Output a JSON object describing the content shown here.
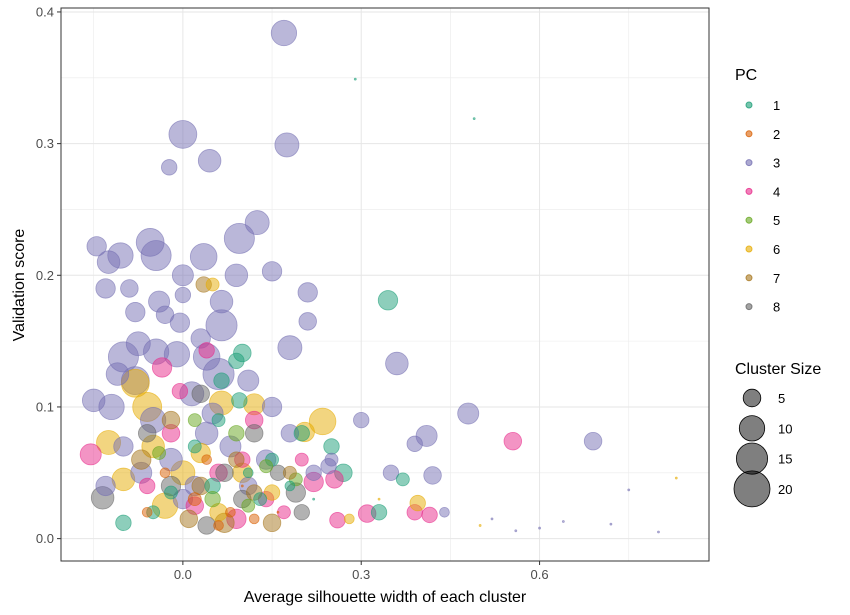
{
  "chart_data": {
    "type": "scatter",
    "xlabel": "Average silhouette width of each cluster",
    "ylabel": "Validation score",
    "xlim": [
      -0.205,
      0.885
    ],
    "ylim": [
      -0.017,
      0.403
    ],
    "x_ticks": [
      0.0,
      0.3,
      0.6
    ],
    "x_tick_labels": [
      "0.0",
      "0.3",
      "0.6"
    ],
    "y_ticks": [
      0.0,
      0.1,
      0.2,
      0.3,
      0.4
    ],
    "y_tick_labels": [
      "0.0",
      "0.1",
      "0.2",
      "0.3",
      "0.4"
    ],
    "grid": true,
    "legend_color": {
      "title": "PC",
      "entries": [
        {
          "label": "1",
          "color": "#1b9e77"
        },
        {
          "label": "2",
          "color": "#d95f02"
        },
        {
          "label": "3",
          "color": "#7570b3"
        },
        {
          "label": "4",
          "color": "#e7298a"
        },
        {
          "label": "5",
          "color": "#66a61e"
        },
        {
          "label": "6",
          "color": "#e6ab02"
        },
        {
          "label": "7",
          "color": "#a6761d"
        },
        {
          "label": "8",
          "color": "#666666"
        }
      ]
    },
    "legend_size": {
      "title": "Cluster Size",
      "entries": [
        {
          "label": "5",
          "value": 5
        },
        {
          "label": "10",
          "value": 10
        },
        {
          "label": "15",
          "value": 15
        },
        {
          "label": "20",
          "value": 20
        }
      ]
    },
    "series": [
      {
        "pc": "1",
        "points": [
          [
            0.29,
            0.349,
            1
          ],
          [
            0.49,
            0.319,
            1
          ],
          [
            0.345,
            0.181,
            6
          ],
          [
            0.1,
            0.141,
            5
          ],
          [
            0.09,
            0.135,
            4
          ],
          [
            0.065,
            0.12,
            4
          ],
          [
            0.095,
            0.105,
            4
          ],
          [
            0.2,
            0.08,
            4
          ],
          [
            0.25,
            0.07,
            4
          ],
          [
            0.27,
            0.05,
            5
          ],
          [
            0.33,
            0.02,
            4
          ],
          [
            0.37,
            0.045,
            3
          ],
          [
            -0.1,
            0.012,
            4
          ],
          [
            -0.05,
            0.02,
            3
          ],
          [
            0.05,
            0.04,
            4
          ],
          [
            0.13,
            0.03,
            3
          ],
          [
            0.15,
            0.06,
            3
          ],
          [
            0.11,
            0.05,
            2
          ],
          [
            -0.02,
            0.035,
            3
          ],
          [
            0.06,
            0.09,
            3
          ],
          [
            0.02,
            0.07,
            3
          ],
          [
            0.18,
            0.04,
            2
          ],
          [
            0.22,
            0.03,
            1
          ]
        ]
      },
      {
        "pc": "2",
        "points": [
          [
            0.02,
            0.03,
            3
          ],
          [
            0.08,
            0.02,
            2
          ],
          [
            0.12,
            0.015,
            2
          ],
          [
            -0.03,
            0.05,
            2
          ],
          [
            0.04,
            0.06,
            2
          ],
          [
            0.1,
            0.04,
            1
          ],
          [
            0.16,
            0.02,
            1
          ],
          [
            0.06,
            0.01,
            2
          ],
          [
            -0.06,
            0.02,
            2
          ]
        ]
      },
      {
        "pc": "3",
        "points": [
          [
            0.17,
            0.384,
            10
          ],
          [
            0.0,
            0.307,
            12
          ],
          [
            0.175,
            0.299,
            9
          ],
          [
            0.045,
            0.287,
            8
          ],
          [
            -0.023,
            0.282,
            4
          ],
          [
            0.125,
            0.24,
            9
          ],
          [
            0.095,
            0.228,
            14
          ],
          [
            -0.055,
            0.225,
            12
          ],
          [
            -0.045,
            0.215,
            14
          ],
          [
            0.035,
            0.214,
            11
          ],
          [
            0.0,
            0.2,
            7
          ],
          [
            0.09,
            0.2,
            8
          ],
          [
            0.15,
            0.203,
            6
          ],
          [
            -0.105,
            0.215,
            10
          ],
          [
            -0.145,
            0.222,
            6
          ],
          [
            -0.125,
            0.21,
            8
          ],
          [
            0.21,
            0.187,
            6
          ],
          [
            -0.09,
            0.19,
            5
          ],
          [
            -0.13,
            0.19,
            6
          ],
          [
            0.0,
            0.185,
            4
          ],
          [
            -0.04,
            0.18,
            7
          ],
          [
            0.065,
            0.18,
            8
          ],
          [
            0.18,
            0.145,
            9
          ],
          [
            -0.08,
            0.172,
            6
          ],
          [
            -0.005,
            0.164,
            6
          ],
          [
            -0.03,
            0.17,
            5
          ],
          [
            0.065,
            0.162,
            15
          ],
          [
            0.21,
            0.165,
            5
          ],
          [
            0.03,
            0.152,
            6
          ],
          [
            -0.075,
            0.148,
            9
          ],
          [
            -0.045,
            0.142,
            10
          ],
          [
            -0.01,
            0.14,
            10
          ],
          [
            0.04,
            0.138,
            11
          ],
          [
            0.06,
            0.125,
            15
          ],
          [
            -0.1,
            0.138,
            14
          ],
          [
            -0.08,
            0.12,
            12
          ],
          [
            0.11,
            0.12,
            7
          ],
          [
            0.36,
            0.133,
            8
          ],
          [
            0.015,
            0.11,
            9
          ],
          [
            -0.12,
            0.1,
            10
          ],
          [
            -0.15,
            0.105,
            8
          ],
          [
            0.48,
            0.095,
            7
          ],
          [
            0.69,
            0.074,
            5
          ],
          [
            0.39,
            0.072,
            4
          ],
          [
            0.41,
            0.078,
            7
          ],
          [
            0.35,
            0.05,
            4
          ],
          [
            0.42,
            0.048,
            5
          ],
          [
            0.3,
            0.09,
            4
          ],
          [
            0.245,
            0.055,
            4
          ],
          [
            0.14,
            0.06,
            6
          ],
          [
            0.08,
            0.07,
            7
          ],
          [
            0.04,
            0.08,
            8
          ],
          [
            -0.05,
            0.09,
            10
          ],
          [
            -0.02,
            0.06,
            8
          ],
          [
            0.02,
            0.04,
            6
          ],
          [
            0.18,
            0.08,
            5
          ],
          [
            0.22,
            0.05,
            4
          ],
          [
            -0.1,
            0.07,
            6
          ],
          [
            0.25,
            0.06,
            3
          ],
          [
            0.15,
            0.1,
            6
          ],
          [
            0.05,
            0.095,
            7
          ],
          [
            -0.07,
            0.05,
            7
          ],
          [
            0.11,
            0.04,
            5
          ],
          [
            0.6,
            0.008,
            1
          ],
          [
            0.75,
            0.037,
            1
          ],
          [
            0.8,
            0.005,
            1
          ],
          [
            0.52,
            0.015,
            1
          ],
          [
            0.64,
            0.013,
            1
          ],
          [
            0.72,
            0.011,
            1
          ],
          [
            0.56,
            0.006,
            1
          ],
          [
            0.44,
            0.02,
            2
          ],
          [
            -0.13,
            0.04,
            6
          ],
          [
            -0.11,
            0.125,
            8
          ],
          [
            0.0,
            0.03,
            6
          ]
        ]
      },
      {
        "pc": "4",
        "points": [
          [
            -0.155,
            0.064,
            7
          ],
          [
            0.555,
            0.074,
            5
          ],
          [
            0.04,
            0.143,
            4
          ],
          [
            -0.035,
            0.13,
            6
          ],
          [
            -0.005,
            0.112,
            4
          ],
          [
            0.22,
            0.043,
            6
          ],
          [
            0.255,
            0.045,
            5
          ],
          [
            0.31,
            0.019,
            5
          ],
          [
            0.39,
            0.02,
            4
          ],
          [
            0.415,
            0.018,
            4
          ],
          [
            0.14,
            0.03,
            4
          ],
          [
            0.09,
            0.015,
            6
          ],
          [
            0.06,
            0.05,
            5
          ],
          [
            -0.02,
            0.08,
            5
          ],
          [
            0.02,
            0.025,
            5
          ],
          [
            0.1,
            0.06,
            4
          ],
          [
            -0.06,
            0.04,
            4
          ],
          [
            0.17,
            0.02,
            3
          ],
          [
            0.2,
            0.06,
            3
          ],
          [
            0.12,
            0.09,
            5
          ],
          [
            0.26,
            0.014,
            4
          ]
        ]
      },
      {
        "pc": "5",
        "points": [
          [
            0.19,
            0.045,
            3
          ],
          [
            0.09,
            0.08,
            4
          ],
          [
            0.05,
            0.03,
            4
          ],
          [
            0.14,
            0.055,
            3
          ],
          [
            -0.04,
            0.065,
            3
          ],
          [
            0.02,
            0.09,
            3
          ],
          [
            0.11,
            0.025,
            3
          ]
        ]
      },
      {
        "pc": "6",
        "points": [
          [
            0.235,
            0.089,
            11
          ],
          [
            -0.08,
            0.118,
            12
          ],
          [
            -0.125,
            0.073,
            9
          ],
          [
            -0.06,
            0.1,
            13
          ],
          [
            0.065,
            0.103,
            9
          ],
          [
            0.12,
            0.102,
            7
          ],
          [
            0.205,
            0.081,
            6
          ],
          [
            0.0,
            0.05,
            9
          ],
          [
            -0.03,
            0.025,
            10
          ],
          [
            0.395,
            0.027,
            4
          ],
          [
            0.1,
            0.05,
            6
          ],
          [
            0.06,
            0.02,
            5
          ],
          [
            -0.1,
            0.045,
            8
          ],
          [
            0.15,
            0.035,
            4
          ],
          [
            -0.05,
            0.07,
            8
          ],
          [
            0.03,
            0.065,
            6
          ],
          [
            0.5,
            0.01,
            1
          ],
          [
            0.28,
            0.015,
            2
          ],
          [
            0.33,
            0.03,
            1
          ],
          [
            0.83,
            0.046,
            1
          ],
          [
            0.05,
            0.193,
            3
          ]
        ]
      },
      {
        "pc": "7",
        "points": [
          [
            0.035,
            0.193,
            4
          ],
          [
            0.07,
            0.012,
            6
          ],
          [
            0.03,
            0.04,
            5
          ],
          [
            0.12,
            0.035,
            4
          ],
          [
            -0.02,
            0.09,
            5
          ],
          [
            0.09,
            0.06,
            4
          ],
          [
            -0.07,
            0.06,
            6
          ],
          [
            0.18,
            0.05,
            3
          ],
          [
            0.15,
            0.012,
            5
          ],
          [
            0.01,
            0.015,
            5
          ]
        ]
      },
      {
        "pc": "8",
        "points": [
          [
            -0.135,
            0.031,
            8
          ],
          [
            0.19,
            0.035,
            6
          ],
          [
            0.16,
            0.05,
            4
          ],
          [
            0.12,
            0.08,
            5
          ],
          [
            0.07,
            0.05,
            5
          ],
          [
            -0.02,
            0.04,
            6
          ],
          [
            0.04,
            0.01,
            5
          ],
          [
            0.2,
            0.02,
            4
          ],
          [
            0.1,
            0.03,
            5
          ],
          [
            -0.06,
            0.08,
            5
          ],
          [
            0.03,
            0.11,
            5
          ]
        ]
      }
    ]
  }
}
